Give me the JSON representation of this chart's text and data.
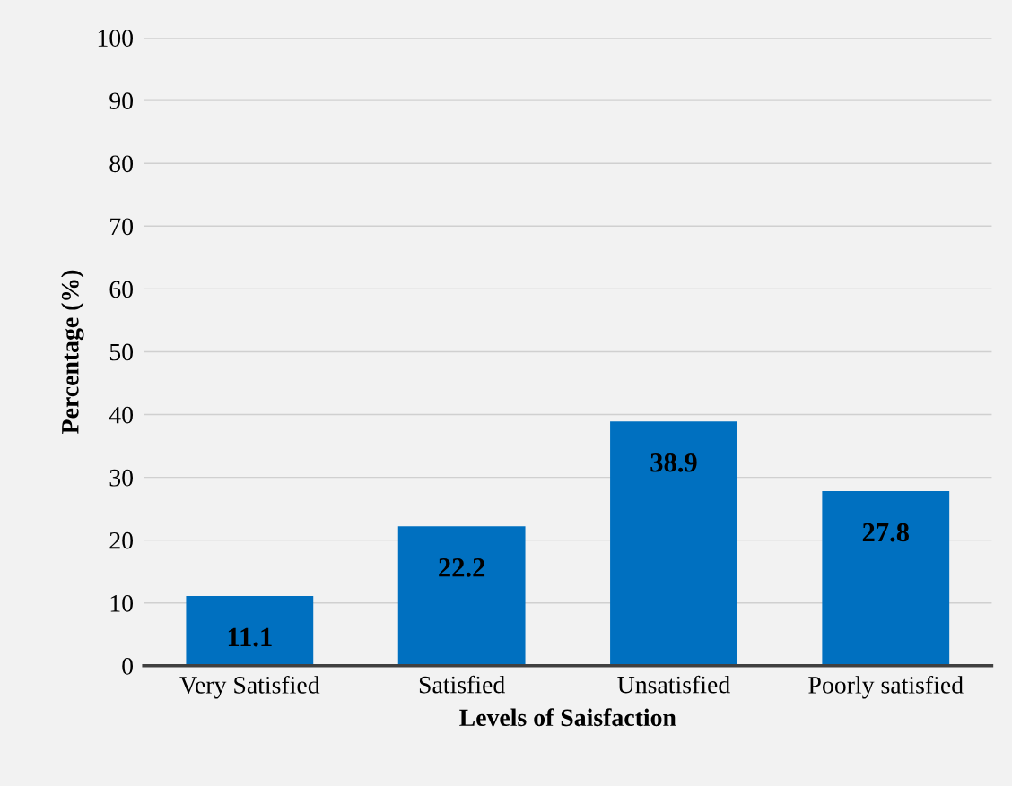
{
  "chart_data": {
    "type": "bar",
    "xlabel": "Levels of Saisfaction",
    "ylabel": "Percentage (%)",
    "categories": [
      "Very Satisfied",
      "Satisfied",
      "Unsatisfied",
      "Poorly satisfied"
    ],
    "values": [
      11.1,
      22.2,
      38.9,
      27.8
    ],
    "color": "#0070c0",
    "ylim": [
      0,
      100
    ],
    "yticks": [
      0,
      10,
      20,
      30,
      40,
      50,
      60,
      70,
      80,
      90,
      100
    ],
    "grid": "y",
    "data_labels": true
  }
}
